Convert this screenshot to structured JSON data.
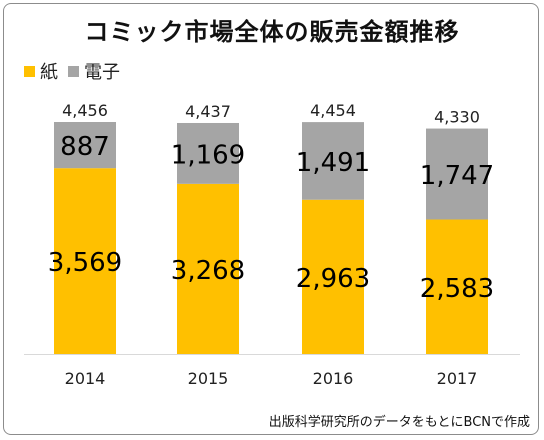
{
  "chart_data": {
    "type": "bar",
    "stacked": true,
    "title": "コミック市場全体の販売金額推移",
    "categories": [
      "2014",
      "2015",
      "2016",
      "2017"
    ],
    "series": [
      {
        "name": "紙",
        "color": "#FFC000",
        "values": [
          3569,
          3268,
          2963,
          2583
        ],
        "labels": [
          "3,569",
          "3,268",
          "2,963",
          "2,583"
        ]
      },
      {
        "name": "電子",
        "color": "#A5A5A5",
        "values": [
          887,
          1169,
          1491,
          1747
        ],
        "labels": [
          "887",
          "1,169",
          "1,491",
          "1,747"
        ]
      }
    ],
    "totals": [
      4456,
      4437,
      4454,
      4330
    ],
    "total_labels": [
      "4,456",
      "4,437",
      "4,454",
      "4,330"
    ],
    "ylim": [
      0,
      4456
    ],
    "grid": false,
    "legend": "top-left"
  },
  "source_note": "出版科学研究所のデータをもとにBCNで作成"
}
